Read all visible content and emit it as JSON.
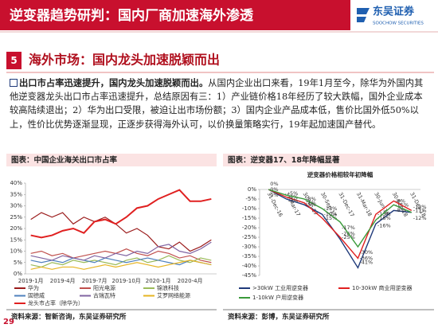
{
  "header": {
    "title": "逆变器趋势研判：国内厂商加速海外渗透",
    "logo": "东吴证券",
    "logo_en": "SOOCHOW SECURITIES"
  },
  "section": {
    "number": "5",
    "title": "海外市场：国内龙头加速脱颖而出"
  },
  "body": {
    "lead": "出口市占率迅速提升，国内龙头加速脱颖而出。",
    "text": "从国内企业出口来看，19年1月至今，除华为外国内其他逆变器龙头出口市占率迅速提升，总结原因有三：1）产业链价格18年经历了较大跌幅，国外企业成本较高陆续退出；2）华为出口受限，被迫让出市场份额；3）国内企业产品成本低，售价比国外低50%以上，性价比优势逐渐显现，正逐步获得海外认可，以价换量策略实行，19年起加速国产替代。"
  },
  "chart_data": [
    {
      "type": "line",
      "caption": "图表：中国企业海关出口市占率",
      "source": "资料来源：智新咨询，东吴证券研究所",
      "categories": [
        "2019-1月",
        null,
        null,
        "2019-4月",
        null,
        null,
        "2019-7月",
        null,
        null,
        "2019-10月",
        null,
        null,
        "2020-1月",
        null,
        null,
        "2020-4月",
        null,
        null
      ],
      "ylim": [
        0,
        40
      ],
      "yticks": [
        {
          "value": 0,
          "label": "0%"
        },
        {
          "value": 5,
          "label": "5%"
        },
        {
          "value": 10,
          "label": "10%"
        },
        {
          "value": 15,
          "label": "15%"
        },
        {
          "value": 20,
          "label": "20%"
        },
        {
          "value": 25,
          "label": "25%"
        },
        {
          "value": 30,
          "label": "30%"
        },
        {
          "value": 35,
          "label": "35%"
        },
        {
          "value": 40,
          "label": "40%"
        }
      ],
      "grid": false,
      "series": [
        {
          "name": "华为",
          "color": "#9b1c1c",
          "values": [
            24,
            27,
            25,
            27,
            22,
            25,
            23,
            25,
            22,
            18,
            20,
            17,
            12,
            11,
            14,
            10,
            12,
            15
          ]
        },
        {
          "name": "阳光电源",
          "color": "#c0504d",
          "values": [
            9,
            10,
            8,
            9,
            7,
            8,
            9,
            10,
            9,
            11,
            9,
            8,
            10,
            9,
            7,
            8,
            6,
            5
          ]
        },
        {
          "name": "锦浪科技",
          "color": "#9bbb59",
          "values": [
            4,
            3,
            5,
            4,
            6,
            5,
            6,
            5,
            4,
            6,
            7,
            5,
            6,
            8,
            6,
            5,
            7,
            6
          ]
        },
        {
          "name": "固德威",
          "color": "#4f81bd",
          "values": [
            6,
            5,
            6,
            5,
            7,
            6,
            5,
            7,
            6,
            5,
            6,
            7,
            6,
            5,
            4,
            6,
            5,
            4
          ]
        },
        {
          "name": "古瑞瓦特",
          "color": "#8064a2",
          "values": [
            8,
            7,
            6,
            8,
            7,
            6,
            8,
            7,
            9,
            8,
            10,
            9,
            12,
            13,
            10,
            9,
            11,
            14
          ]
        },
        {
          "name": "艾罗网络能源",
          "color": "#e6b422",
          "values": [
            2,
            3,
            2,
            3,
            3,
            2,
            3,
            4,
            3,
            4,
            5,
            4,
            3,
            4,
            5,
            6,
            5,
            4
          ]
        },
        {
          "name": "龙头市占率（除华为）",
          "color": "#e02020",
          "values": [
            17,
            16,
            17,
            19,
            20,
            18,
            23,
            24,
            22,
            25,
            29,
            30,
            33,
            35,
            37,
            32,
            32,
            33
          ]
        }
      ]
    },
    {
      "type": "line",
      "caption": "图表：逆变器17、18年降幅显著",
      "title": "逆变器价格相较年初降幅",
      "source": "资料来源：彭博，东吴证券研究所",
      "categories": [
        "31-Dec-16",
        "31-Mar-17",
        "30-Jun-17",
        "30-Sep-17",
        "31-Dec-17",
        "31-Mar-18",
        "30-Jun-18",
        "30-Sep-18",
        "31-Dec-18"
      ],
      "ylim": [
        -45,
        0
      ],
      "yticks": [
        {
          "value": 0,
          "label": "0%"
        },
        {
          "value": -5,
          "label": "-5%"
        },
        {
          "value": -10,
          "label": "-10%"
        },
        {
          "value": -15,
          "label": "-15%"
        },
        {
          "value": -20,
          "label": "-20%"
        },
        {
          "value": -25,
          "label": "-25%"
        },
        {
          "value": -30,
          "label": "-30%"
        },
        {
          "value": -35,
          "label": "-35%"
        },
        {
          "value": -40,
          "label": "-40%"
        },
        {
          "value": -45,
          "label": "-45%"
        }
      ],
      "grid": false,
      "series": [
        {
          "name": ">30kW 工业用逆变器",
          "color": "#1f3a7a",
          "values": [
            0,
            -5,
            -8,
            -13,
            -26,
            -41,
            -18,
            -11,
            -12
          ],
          "value_labels": [
            "0%",
            "-5%",
            "-8%",
            "-13%",
            "-26%",
            "-41%",
            "-18%",
            "-11%",
            "-12%"
          ]
        },
        {
          "name": "10-30kW 商业用逆变器",
          "color": "#e02020",
          "values": [
            0,
            -4,
            -7,
            -15,
            -25,
            -36,
            -13,
            -6,
            -11
          ],
          "value_labels": [
            "0%",
            "-4%",
            "-7%",
            "-15%",
            "-25%",
            "-36%",
            "-13%",
            "-6%",
            "-11%"
          ]
        },
        {
          "name": "1-10kW 户用逆变器",
          "color": "#3a9a3a",
          "values": [
            0,
            -3,
            -5,
            -10,
            -17,
            -30,
            -16,
            -8,
            -12
          ],
          "value_labels": [
            "0%",
            "-3%",
            "-5%",
            "-10%",
            "-17%",
            "-30%",
            "-16%",
            "-8%",
            "-12%"
          ]
        }
      ]
    }
  ],
  "page_number": "29"
}
